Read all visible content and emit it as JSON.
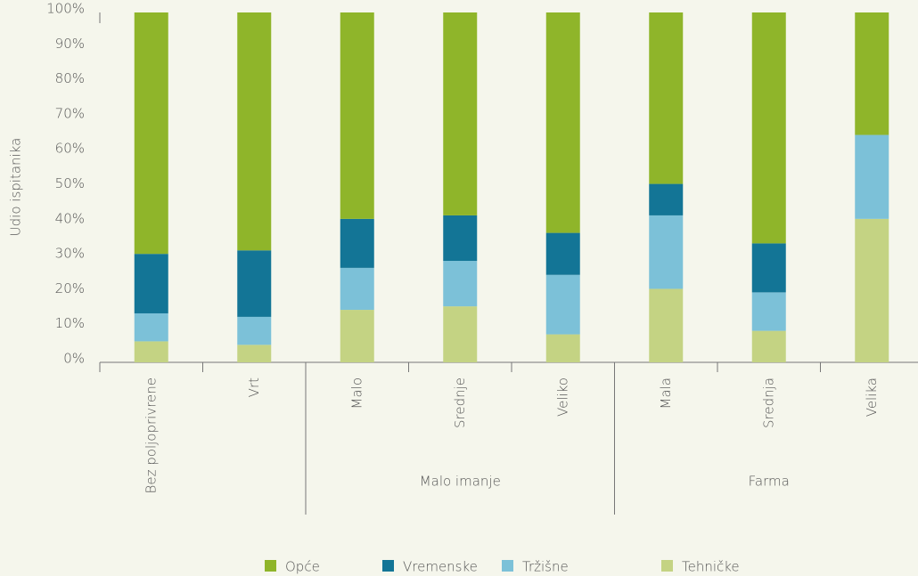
{
  "chart_data": {
    "type": "stacked_bar",
    "y_label": "Udio ispitanika",
    "categories": [
      "Bez poljoprivrene",
      "Vrt",
      "Malo",
      "Srednje",
      "Veliko",
      "Mala",
      "Srednja",
      "Velika"
    ],
    "groups": [
      {
        "label": "Malo imanje",
        "start": 2,
        "end": 4
      },
      {
        "label": "Farma",
        "start": 5,
        "end": 7
      }
    ],
    "series": [
      {
        "name": "Opće",
        "color": "#8fb52a",
        "values": [
          69,
          68,
          59,
          58,
          63,
          49,
          66,
          35
        ]
      },
      {
        "name": "Vremenske",
        "color": "#137596",
        "values": [
          17,
          19,
          14,
          13,
          12,
          9,
          14,
          0
        ]
      },
      {
        "name": "Tržišne",
        "color": "#7cc1d8",
        "values": [
          8,
          8,
          12,
          13,
          17,
          21,
          11,
          24
        ]
      },
      {
        "name": "Tehničke",
        "color": "#c4d383",
        "values": [
          6,
          5,
          15,
          16,
          8,
          21,
          9,
          41
        ]
      }
    ],
    "ylim": [
      0,
      100
    ],
    "yticks": [
      {
        "value": 0,
        "label": "0%"
      },
      {
        "value": 10,
        "label": "10%"
      },
      {
        "value": 20,
        "label": "20%"
      },
      {
        "value": 30,
        "label": "30%"
      },
      {
        "value": 40,
        "label": "40%"
      },
      {
        "value": 50,
        "label": "50%"
      },
      {
        "value": 60,
        "label": "60%"
      },
      {
        "value": 70,
        "label": "70%"
      },
      {
        "value": 80,
        "label": "80%"
      },
      {
        "value": 90,
        "label": "90%"
      },
      {
        "value": 100,
        "label": "100%"
      }
    ],
    "legend": "bottom"
  }
}
